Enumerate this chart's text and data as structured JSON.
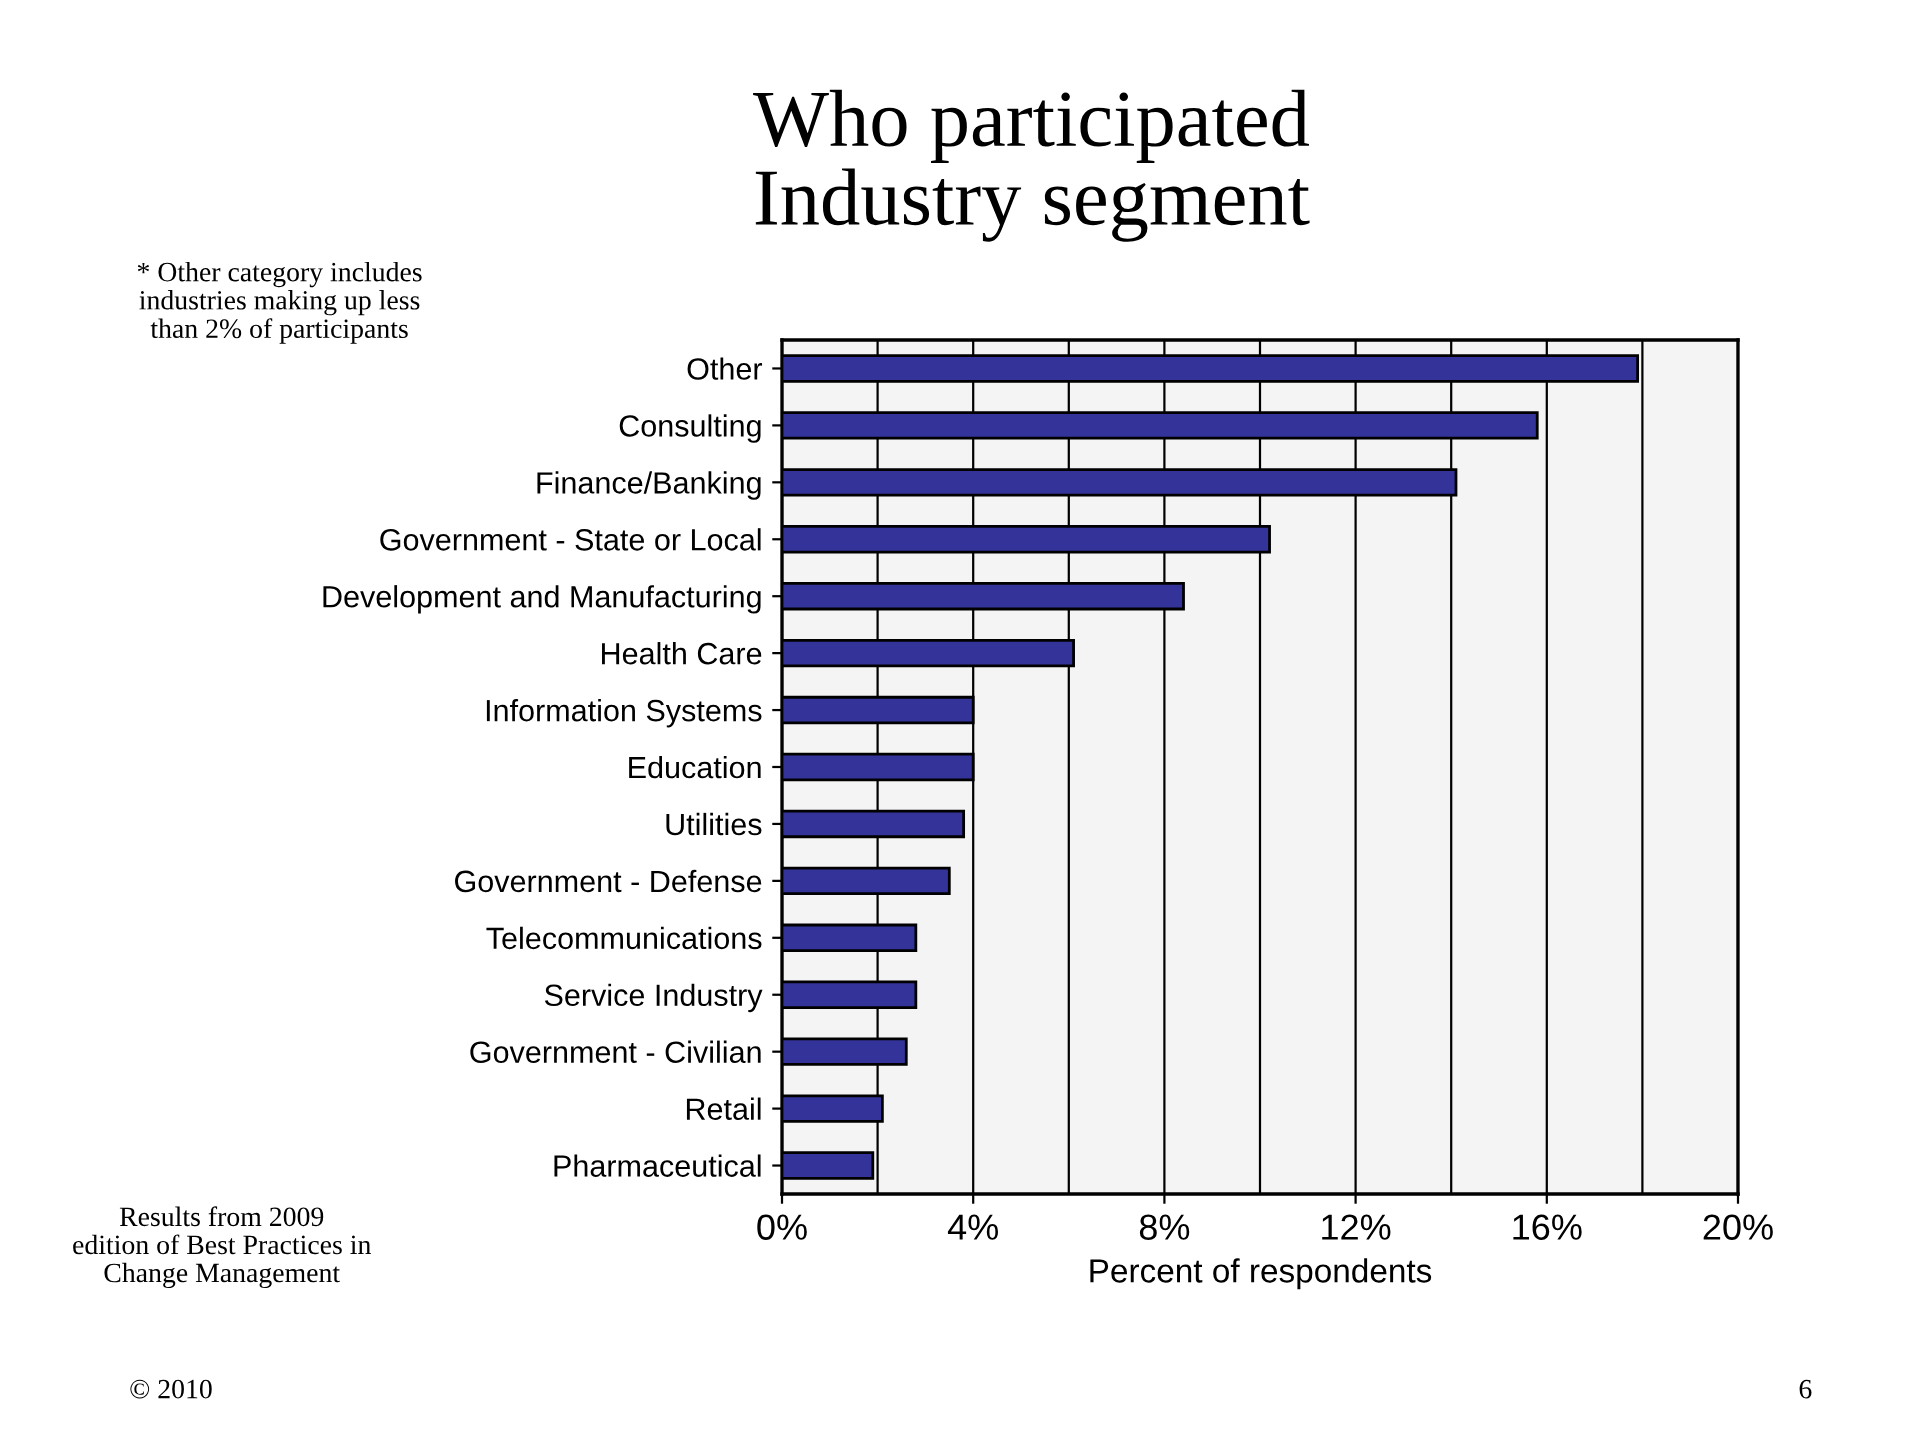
{
  "chart_data": {
    "type": "bar",
    "orientation": "horizontal",
    "title": "Who participated\nIndustry segment",
    "xlabel": "Percent of respondents",
    "categories": [
      "Other",
      "Consulting",
      "Finance/Banking",
      "Government - State or Local",
      "Development and Manufacturing",
      "Health Care",
      "Information Systems",
      "Education",
      "Utilities",
      "Government - Defense",
      "Telecommunications",
      "Service Industry",
      "Government - Civilian",
      "Retail",
      "Pharmaceutical"
    ],
    "values": [
      17.9,
      15.8,
      14.1,
      10.2,
      8.4,
      6.1,
      4.0,
      4.0,
      3.8,
      3.5,
      2.8,
      2.8,
      2.6,
      2.1,
      1.9
    ],
    "color": "#333399",
    "xlim": [
      0,
      20
    ],
    "xticks": [
      {
        "value": 0,
        "label": "0%"
      },
      {
        "value": 2,
        "label": null
      },
      {
        "value": 4,
        "label": "4%"
      },
      {
        "value": 6,
        "label": null
      },
      {
        "value": 8,
        "label": "8%"
      },
      {
        "value": 10,
        "label": null
      },
      {
        "value": 12,
        "label": "12%"
      },
      {
        "value": 14,
        "label": null
      },
      {
        "value": 16,
        "label": "16%"
      },
      {
        "value": 18,
        "label": null
      },
      {
        "value": 20,
        "label": "20%"
      }
    ],
    "grid": "x",
    "annotations": [
      "* Other category includes\nindustries making up less\nthan 2% of participants",
      "Results from 2009\nedition of Best Practices in\nChange Management",
      "© 2010",
      "6"
    ]
  }
}
